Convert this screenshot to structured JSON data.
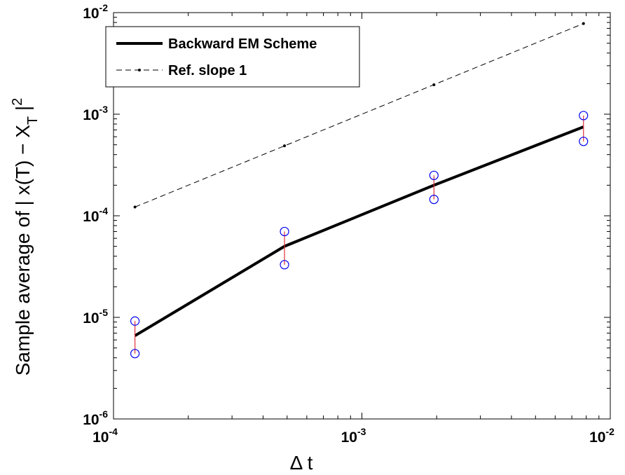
{
  "chart_data": {
    "type": "line",
    "xscale": "log",
    "yscale": "log",
    "xlim": [
      0.0001,
      0.01
    ],
    "ylim": [
      1e-06,
      0.01
    ],
    "grid": false,
    "legend_position": "top-left",
    "xlabel": "Δ t",
    "ylabel": "Sample average of | x(T) − X_T |^2",
    "ylabel_parts": {
      "main": "Sample average of | x(T) − X",
      "sub": "T",
      "tail": " |",
      "sup": "2"
    },
    "x_tick_labels": [
      {
        "base": "10",
        "exp": "-4"
      },
      {
        "base": "10",
        "exp": "-3"
      },
      {
        "base": "10",
        "exp": "-2"
      }
    ],
    "y_tick_labels": [
      {
        "base": "10",
        "exp": "-6"
      },
      {
        "base": "10",
        "exp": "-5"
      },
      {
        "base": "10",
        "exp": "-4"
      },
      {
        "base": "10",
        "exp": "-3"
      },
      {
        "base": "10",
        "exp": "-2"
      }
    ],
    "series": [
      {
        "name": "Backward EM Scheme",
        "style": "solid",
        "color": "#000000",
        "x": [
          0.000122,
          0.000488,
          0.00195,
          0.0078
        ],
        "y": [
          6.6e-06,
          5e-05,
          0.0002,
          0.00075
        ]
      },
      {
        "name": "Ref. slope 1",
        "style": "dashed",
        "color": "#000000",
        "x": [
          0.000122,
          0.000488,
          0.00195,
          0.0078
        ],
        "y": [
          0.000122,
          0.000488,
          0.00195,
          0.0078
        ]
      }
    ],
    "error_bars": {
      "bar_color": "#e0303a",
      "marker_color": "#0000ee",
      "x": [
        0.000122,
        0.000488,
        0.00195,
        0.0078
      ],
      "upper": [
        9.2e-06,
        7e-05,
        0.00025,
        0.00097
      ],
      "lower": [
        4.4e-06,
        3.3e-05,
        0.000145,
        0.00054
      ]
    }
  }
}
